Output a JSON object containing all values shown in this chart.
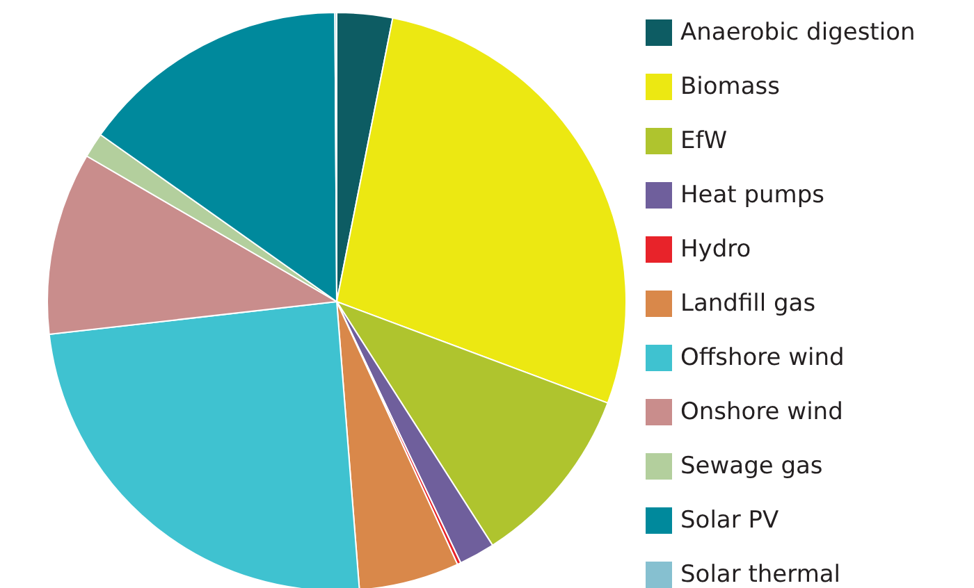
{
  "chart_data": {
    "type": "pie",
    "categories": [
      "Anaerobic digestion",
      "Biomass",
      "EfW",
      "Heat pumps",
      "Hydro",
      "Landfill gas",
      "Offshore wind",
      "Onshore wind",
      "Sewage gas",
      "Solar PV",
      "Solar thermal"
    ],
    "values": [
      3.1,
      27.6,
      10.25,
      2,
      0.2,
      5.6,
      24.45,
      10.2,
      1.4,
      15.1,
      0.1
    ],
    "colors": [
      "#0d5c63",
      "#ece812",
      "#afc42e",
      "#6f5f9c",
      "#e8232a",
      "#d9884a",
      "#3fc2d0",
      "#c98d8c",
      "#b3cf9d",
      "#00899c",
      "#86c0d0"
    ],
    "legend": "right"
  }
}
